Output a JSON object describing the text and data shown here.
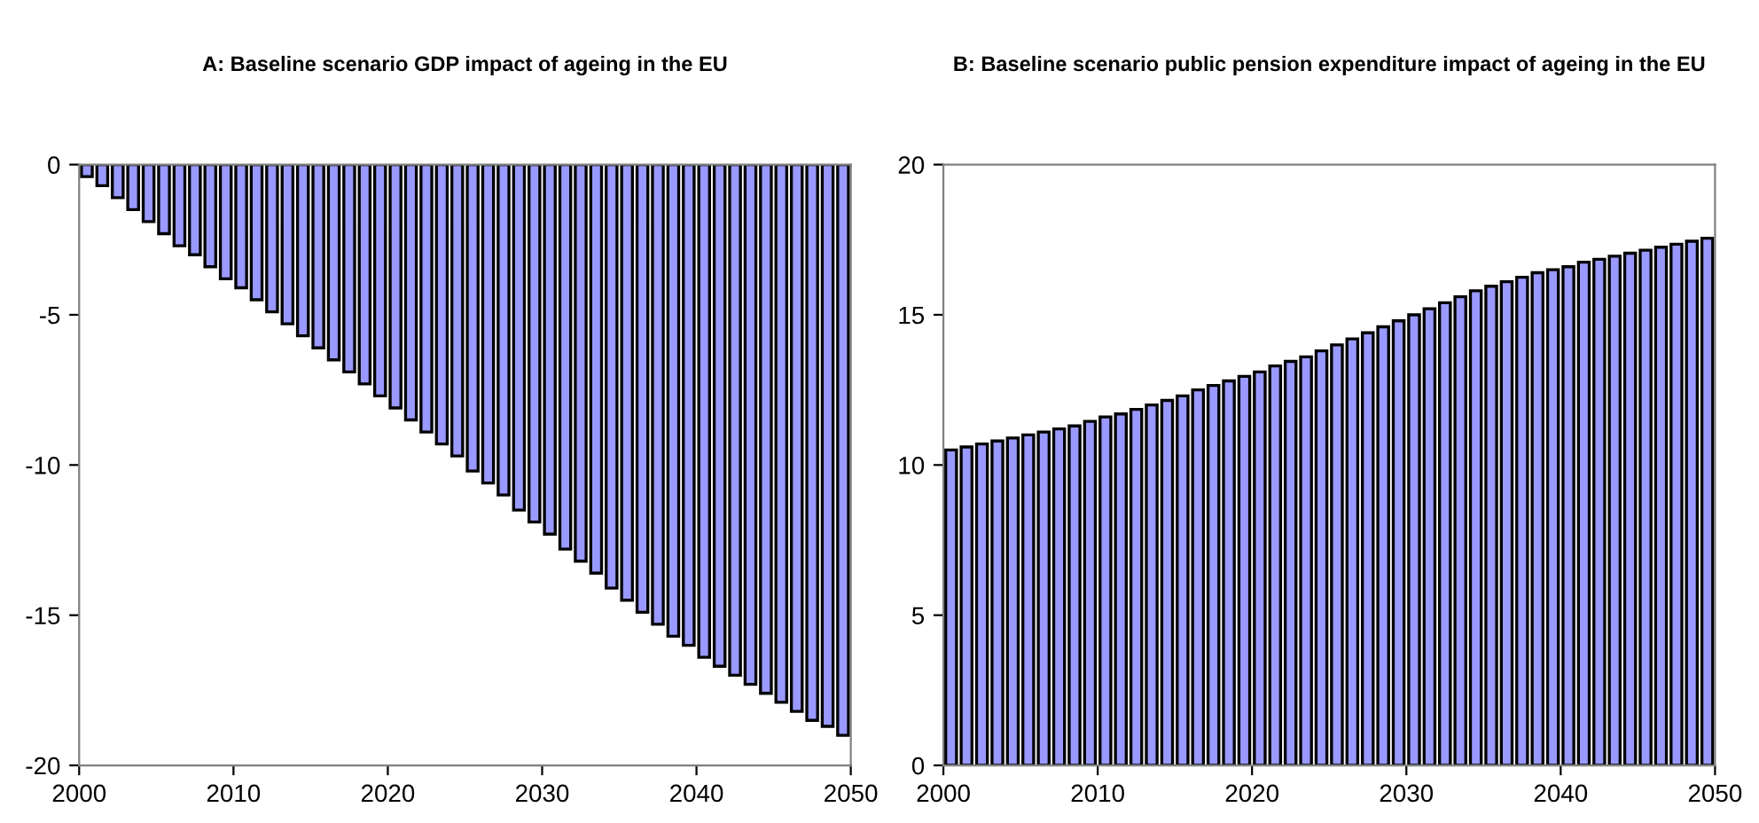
{
  "chart_data": [
    {
      "type": "bar",
      "title": "A: Baseline scenario GDP impact of ageing in the EU",
      "x": [
        2000.5,
        2001.5,
        2002.5,
        2003.5,
        2004.5,
        2005.5,
        2006.5,
        2007.5,
        2008.5,
        2009.5,
        2010.5,
        2011.5,
        2012.5,
        2013.5,
        2014.5,
        2015.5,
        2016.5,
        2017.5,
        2018.5,
        2019.5,
        2020.5,
        2021.5,
        2022.5,
        2023.5,
        2024.5,
        2025.5,
        2026.5,
        2027.5,
        2028.5,
        2029.5,
        2030.5,
        2031.5,
        2032.5,
        2033.5,
        2034.5,
        2035.5,
        2036.5,
        2037.5,
        2038.5,
        2039.5,
        2040.5,
        2041.5,
        2042.5,
        2043.5,
        2044.5,
        2045.5,
        2046.5,
        2047.5,
        2048.5,
        2049.5
      ],
      "values": [
        -0.4,
        -0.7,
        -1.1,
        -1.5,
        -1.9,
        -2.3,
        -2.7,
        -3.0,
        -3.4,
        -3.8,
        -4.1,
        -4.5,
        -4.9,
        -5.3,
        -5.7,
        -6.1,
        -6.5,
        -6.9,
        -7.3,
        -7.7,
        -8.1,
        -8.5,
        -8.9,
        -9.3,
        -9.7,
        -10.2,
        -10.6,
        -11.0,
        -11.5,
        -11.9,
        -12.3,
        -12.8,
        -13.2,
        -13.6,
        -14.1,
        -14.5,
        -14.9,
        -15.3,
        -15.7,
        -16.0,
        -16.4,
        -16.7,
        -17.0,
        -17.3,
        -17.6,
        -17.9,
        -18.2,
        -18.5,
        -18.7,
        -19.0
      ],
      "color": "#9999ff",
      "xlim": [
        2000,
        2050
      ],
      "xticks": [
        2000,
        2010,
        2020,
        2030,
        2040,
        2050
      ],
      "ylim": [
        -20,
        0
      ],
      "yticks": [
        -20,
        -15,
        -10,
        -5,
        0
      ],
      "grid": false
    },
    {
      "type": "bar",
      "title": "B: Baseline scenario public pension expenditure impact of ageing in the EU",
      "x": [
        2000.5,
        2001.5,
        2002.5,
        2003.5,
        2004.5,
        2005.5,
        2006.5,
        2007.5,
        2008.5,
        2009.5,
        2010.5,
        2011.5,
        2012.5,
        2013.5,
        2014.5,
        2015.5,
        2016.5,
        2017.5,
        2018.5,
        2019.5,
        2020.5,
        2021.5,
        2022.5,
        2023.5,
        2024.5,
        2025.5,
        2026.5,
        2027.5,
        2028.5,
        2029.5,
        2030.5,
        2031.5,
        2032.5,
        2033.5,
        2034.5,
        2035.5,
        2036.5,
        2037.5,
        2038.5,
        2039.5,
        2040.5,
        2041.5,
        2042.5,
        2043.5,
        2044.5,
        2045.5,
        2046.5,
        2047.5,
        2048.5,
        2049.5
      ],
      "values": [
        10.5,
        10.6,
        10.7,
        10.8,
        10.9,
        11.0,
        11.1,
        11.2,
        11.3,
        11.45,
        11.6,
        11.7,
        11.85,
        12.0,
        12.15,
        12.3,
        12.5,
        12.65,
        12.8,
        12.95,
        13.1,
        13.3,
        13.45,
        13.6,
        13.8,
        14.0,
        14.2,
        14.4,
        14.6,
        14.8,
        15.0,
        15.2,
        15.4,
        15.6,
        15.8,
        15.95,
        16.1,
        16.25,
        16.4,
        16.5,
        16.6,
        16.75,
        16.85,
        16.95,
        17.05,
        17.15,
        17.25,
        17.35,
        17.45,
        17.55
      ],
      "color": "#9999ff",
      "xlim": [
        2000,
        2050
      ],
      "xticks": [
        2000,
        2010,
        2020,
        2030,
        2040,
        2050
      ],
      "ylim": [
        0,
        20
      ],
      "yticks": [
        0,
        5,
        10,
        15,
        20
      ],
      "grid": false
    }
  ]
}
